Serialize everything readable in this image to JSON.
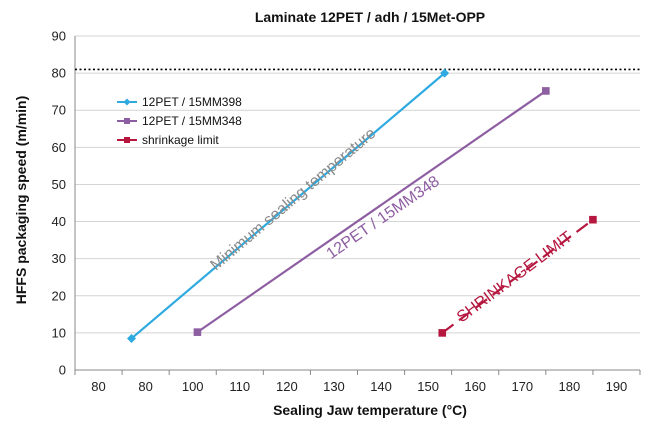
{
  "chart_data": {
    "type": "line",
    "title": "Laminate 12PET / adh / 15Met-OPP",
    "xlabel": "Sealing Jaw temperature (°C)",
    "ylabel": "HFFS packaging speed (m/min)",
    "x_tick_labels": [
      "80",
      "80",
      "100",
      "110",
      "120",
      "130",
      "140",
      "150",
      "160",
      "170",
      "180",
      "190"
    ],
    "y_ticks": [
      0,
      10,
      20,
      30,
      40,
      50,
      60,
      70,
      80,
      90
    ],
    "ylim": [
      0,
      90
    ],
    "xlim": [
      75,
      195
    ],
    "grid": "horizontal",
    "legend_placement": "top-left",
    "reference_line": {
      "y": 81,
      "style": "dotted",
      "color": "#000000"
    },
    "series": [
      {
        "name": "12PET / 15MM398",
        "color": "#2eaae1",
        "marker": "diamond",
        "dash": "solid",
        "points": [
          {
            "x": 87,
            "y": 8.5
          },
          {
            "x": 153.5,
            "y": 80
          }
        ]
      },
      {
        "name": "12PET / 15MM348",
        "color": "#8e5ea2",
        "marker": "square",
        "dash": "solid",
        "points": [
          {
            "x": 101,
            "y": 10.2
          },
          {
            "x": 175,
            "y": 75.2
          }
        ]
      },
      {
        "name": "shrinkage limit",
        "color": "#b5173f",
        "marker": "square",
        "dash": "dashed",
        "points": [
          {
            "x": 153,
            "y": 10
          },
          {
            "x": 185,
            "y": 40.5
          }
        ]
      }
    ],
    "annotations": [
      {
        "text": "Minimum sealing temperature",
        "color": "#8a8a8a",
        "anchor": {
          "x": 122,
          "y": 45
        }
      },
      {
        "text": "12PET / 15MM348",
        "color": "#8e5ea2",
        "anchor": {
          "x": 141,
          "y": 40
        }
      },
      {
        "text": "SHRINKAGE LIMIT",
        "color": "#b5173f",
        "anchor": {
          "x": 169,
          "y": 24
        }
      }
    ]
  }
}
